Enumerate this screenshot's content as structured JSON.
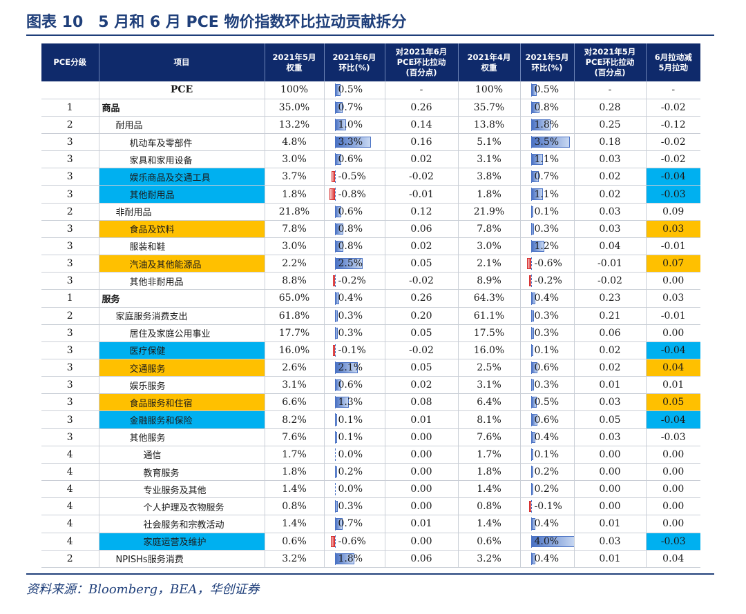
{
  "title": "图表 10　5 月和 6 月 PCE 物价指数环比拉动贡献拆分",
  "headers": [
    "PCE分级",
    "项目",
    "2021年5月\n权重",
    "2021年6月\n环比(%)",
    "对2021年6月\nPCE环比拉动\n(百分点)",
    "2021年4月\n权重",
    "2021年5月\n环比(%)",
    "对2021年5月\nPCE环比拉动\n(百分点)",
    "6月拉动减\n5月拉动"
  ],
  "rows": [
    {
      "level": "",
      "item": "PCE",
      "w5": "100%",
      "m6": "0.5%",
      "m6v": 0.5,
      "c6": "-",
      "w4": "100%",
      "m5": "0.5%",
      "m5v": 0.5,
      "c5": "-",
      "diff": "-",
      "indent": 0,
      "style": "center",
      "hl": ""
    },
    {
      "level": "1",
      "item": "商品",
      "w5": "35.0%",
      "m6": "0.7%",
      "m6v": 0.7,
      "c6": "0.26",
      "w4": "35.7%",
      "m5": "0.8%",
      "m5v": 0.8,
      "c5": "0.28",
      "diff": "-0.02",
      "indent": 0,
      "style": "bold",
      "hl": ""
    },
    {
      "level": "2",
      "item": "耐用品",
      "w5": "13.2%",
      "m6": "1.0%",
      "m6v": 1.0,
      "c6": "0.14",
      "w4": "13.8%",
      "m5": "1.8%",
      "m5v": 1.8,
      "c5": "0.25",
      "diff": "-0.12",
      "indent": 1,
      "style": "",
      "hl": ""
    },
    {
      "level": "3",
      "item": "机动车及零部件",
      "w5": "4.8%",
      "m6": "3.3%",
      "m6v": 3.3,
      "c6": "0.16",
      "w4": "5.1%",
      "m5": "3.5%",
      "m5v": 3.5,
      "c5": "0.18",
      "diff": "-0.02",
      "indent": 2,
      "style": "",
      "hl": ""
    },
    {
      "level": "3",
      "item": "家具和家用设备",
      "w5": "3.0%",
      "m6": "0.6%",
      "m6v": 0.6,
      "c6": "0.02",
      "w4": "3.1%",
      "m5": "1.1%",
      "m5v": 1.1,
      "c5": "0.03",
      "diff": "-0.02",
      "indent": 2,
      "style": "",
      "hl": ""
    },
    {
      "level": "3",
      "item": "娱乐商品及交通工具",
      "w5": "3.7%",
      "m6": "-0.5%",
      "m6v": -0.5,
      "c6": "-0.02",
      "w4": "3.8%",
      "m5": "0.7%",
      "m5v": 0.7,
      "c5": "0.02",
      "diff": "-0.04",
      "indent": 2,
      "style": "",
      "hl": "blue"
    },
    {
      "level": "3",
      "item": "其他耐用品",
      "w5": "1.8%",
      "m6": "-0.8%",
      "m6v": -0.8,
      "c6": "-0.01",
      "w4": "1.8%",
      "m5": "1.1%",
      "m5v": 1.1,
      "c5": "0.02",
      "diff": "-0.03",
      "indent": 2,
      "style": "",
      "hl": "blue"
    },
    {
      "level": "2",
      "item": "非耐用品",
      "w5": "21.8%",
      "m6": "0.6%",
      "m6v": 0.6,
      "c6": "0.12",
      "w4": "21.9%",
      "m5": "0.1%",
      "m5v": 0.1,
      "c5": "0.03",
      "diff": "0.09",
      "indent": 1,
      "style": "",
      "hl": ""
    },
    {
      "level": "3",
      "item": "食品及饮料",
      "w5": "7.8%",
      "m6": "0.8%",
      "m6v": 0.8,
      "c6": "0.06",
      "w4": "7.8%",
      "m5": "0.3%",
      "m5v": 0.3,
      "c5": "0.03",
      "diff": "0.03",
      "indent": 2,
      "style": "",
      "hl": "orange"
    },
    {
      "level": "3",
      "item": "服装和鞋",
      "w5": "3.0%",
      "m6": "0.8%",
      "m6v": 0.8,
      "c6": "0.02",
      "w4": "3.0%",
      "m5": "1.2%",
      "m5v": 1.2,
      "c5": "0.04",
      "diff": "-0.01",
      "indent": 2,
      "style": "",
      "hl": ""
    },
    {
      "level": "3",
      "item": "汽油及其他能源品",
      "w5": "2.2%",
      "m6": "2.5%",
      "m6v": 2.5,
      "c6": "0.05",
      "w4": "2.1%",
      "m5": "-0.6%",
      "m5v": -0.6,
      "c5": "-0.01",
      "diff": "0.07",
      "indent": 2,
      "style": "",
      "hl": "orange"
    },
    {
      "level": "3",
      "item": "其他非耐用品",
      "w5": "8.8%",
      "m6": "-0.2%",
      "m6v": -0.2,
      "c6": "-0.02",
      "w4": "8.9%",
      "m5": "-0.2%",
      "m5v": -0.2,
      "c5": "-0.02",
      "diff": "0.00",
      "indent": 2,
      "style": "",
      "hl": ""
    },
    {
      "level": "1",
      "item": "服务",
      "w5": "65.0%",
      "m6": "0.4%",
      "m6v": 0.4,
      "c6": "0.26",
      "w4": "64.3%",
      "m5": "0.4%",
      "m5v": 0.4,
      "c5": "0.23",
      "diff": "0.03",
      "indent": 0,
      "style": "bold",
      "hl": ""
    },
    {
      "level": "2",
      "item": "家庭服务消费支出",
      "w5": "61.8%",
      "m6": "0.3%",
      "m6v": 0.3,
      "c6": "0.20",
      "w4": "61.1%",
      "m5": "0.3%",
      "m5v": 0.3,
      "c5": "0.21",
      "diff": "-0.01",
      "indent": 1,
      "style": "",
      "hl": ""
    },
    {
      "level": "3",
      "item": "居住及家庭公用事业",
      "w5": "17.7%",
      "m6": "0.3%",
      "m6v": 0.3,
      "c6": "0.05",
      "w4": "17.5%",
      "m5": "0.3%",
      "m5v": 0.3,
      "c5": "0.06",
      "diff": "0.00",
      "indent": 2,
      "style": "",
      "hl": ""
    },
    {
      "level": "3",
      "item": "医疗保健",
      "w5": "16.0%",
      "m6": "-0.1%",
      "m6v": -0.1,
      "c6": "-0.02",
      "w4": "16.0%",
      "m5": "0.1%",
      "m5v": 0.1,
      "c5": "0.02",
      "diff": "-0.04",
      "indent": 2,
      "style": "",
      "hl": "blue"
    },
    {
      "level": "3",
      "item": "交通服务",
      "w5": "2.6%",
      "m6": "2.1%",
      "m6v": 2.1,
      "c6": "0.05",
      "w4": "2.5%",
      "m5": "0.6%",
      "m5v": 0.6,
      "c5": "0.02",
      "diff": "0.04",
      "indent": 2,
      "style": "",
      "hl": "orange"
    },
    {
      "level": "3",
      "item": "娱乐服务",
      "w5": "3.1%",
      "m6": "0.6%",
      "m6v": 0.6,
      "c6": "0.02",
      "w4": "3.1%",
      "m5": "0.3%",
      "m5v": 0.3,
      "c5": "0.01",
      "diff": "0.01",
      "indent": 2,
      "style": "",
      "hl": ""
    },
    {
      "level": "3",
      "item": "食品服务和住宿",
      "w5": "6.6%",
      "m6": "1.3%",
      "m6v": 1.3,
      "c6": "0.08",
      "w4": "6.4%",
      "m5": "0.5%",
      "m5v": 0.5,
      "c5": "0.03",
      "diff": "0.05",
      "indent": 2,
      "style": "",
      "hl": "orange"
    },
    {
      "level": "3",
      "item": "金融服务和保险",
      "w5": "8.2%",
      "m6": "0.1%",
      "m6v": 0.1,
      "c6": "0.01",
      "w4": "8.1%",
      "m5": "0.6%",
      "m5v": 0.6,
      "c5": "0.05",
      "diff": "-0.04",
      "indent": 2,
      "style": "",
      "hl": "blue"
    },
    {
      "level": "3",
      "item": "其他服务",
      "w5": "7.6%",
      "m6": "0.1%",
      "m6v": 0.1,
      "c6": "0.00",
      "w4": "7.6%",
      "m5": "0.4%",
      "m5v": 0.4,
      "c5": "0.03",
      "diff": "-0.03",
      "indent": 2,
      "style": "",
      "hl": ""
    },
    {
      "level": "4",
      "item": "通信",
      "w5": "1.7%",
      "m6": "0.0%",
      "m6v": 0.0,
      "c6": "0.00",
      "w4": "1.7%",
      "m5": "0.1%",
      "m5v": 0.1,
      "c5": "0.00",
      "diff": "0.00",
      "indent": 3,
      "style": "",
      "hl": ""
    },
    {
      "level": "4",
      "item": "教育服务",
      "w5": "1.8%",
      "m6": "0.2%",
      "m6v": 0.2,
      "c6": "0.00",
      "w4": "1.8%",
      "m5": "0.2%",
      "m5v": 0.2,
      "c5": "0.00",
      "diff": "0.00",
      "indent": 3,
      "style": "",
      "hl": ""
    },
    {
      "level": "4",
      "item": "专业服务及其他",
      "w5": "1.4%",
      "m6": "0.0%",
      "m6v": 0.0,
      "c6": "0.00",
      "w4": "1.4%",
      "m5": "0.2%",
      "m5v": 0.2,
      "c5": "0.00",
      "diff": "0.00",
      "indent": 3,
      "style": "",
      "hl": ""
    },
    {
      "level": "4",
      "item": "个人护理及衣物服务",
      "w5": "0.8%",
      "m6": "0.3%",
      "m6v": 0.3,
      "c6": "0.00",
      "w4": "0.8%",
      "m5": "-0.1%",
      "m5v": -0.1,
      "c5": "0.00",
      "diff": "0.00",
      "indent": 3,
      "style": "",
      "hl": ""
    },
    {
      "level": "4",
      "item": "社会服务和宗教活动",
      "w5": "1.4%",
      "m6": "0.7%",
      "m6v": 0.7,
      "c6": "0.01",
      "w4": "1.4%",
      "m5": "0.4%",
      "m5v": 0.4,
      "c5": "0.01",
      "diff": "0.00",
      "indent": 3,
      "style": "",
      "hl": ""
    },
    {
      "level": "4",
      "item": "家庭运营及维护",
      "w5": "0.6%",
      "m6": "-0.6%",
      "m6v": -0.6,
      "c6": "0.00",
      "w4": "0.6%",
      "m5": "4.0%",
      "m5v": 4.0,
      "c5": "0.03",
      "diff": "-0.03",
      "indent": 3,
      "style": "",
      "hl": "blue"
    },
    {
      "level": "2",
      "item": "NPISHs服务消费",
      "w5": "3.2%",
      "m6": "1.8%",
      "m6v": 1.8,
      "c6": "0.06",
      "w4": "3.2%",
      "m5": "0.4%",
      "m5v": 0.4,
      "c5": "0.01",
      "diff": "0.04",
      "indent": 1,
      "style": "",
      "hl": ""
    }
  ],
  "source": "资料来源：Bloomberg，BEA，华创证券"
}
